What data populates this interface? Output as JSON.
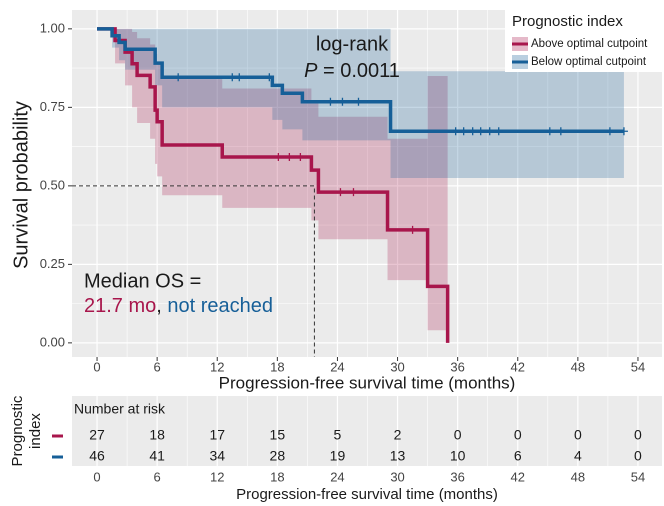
{
  "chart_data": {
    "type": "survival",
    "ylabel": "Survival probability",
    "xlabel": "Progression-free survival time (months)",
    "xlim": [
      -2.5,
      56.4
    ],
    "ylim": [
      -0.045,
      1.06
    ],
    "xticks": [
      0,
      6,
      12,
      18,
      24,
      30,
      36,
      42,
      48,
      54
    ],
    "yticks": [
      {
        "value": 0,
        "label": "0.00"
      },
      {
        "value": 0.25,
        "label": "0.25"
      },
      {
        "value": 0.5,
        "label": "0.50"
      },
      {
        "value": 0.75,
        "label": "0.75"
      },
      {
        "value": 1,
        "label": "1.00"
      }
    ],
    "grid": true,
    "legend": {
      "title": "Prognostic index",
      "position": "top-right"
    },
    "series": [
      {
        "name": "Above optimal cutpoint",
        "color": "#a8164c",
        "x": [
          0,
          1.8,
          2.8,
          3.5,
          4.0,
          5.3,
          5.8,
          6.0,
          6.5,
          12.5,
          21.4,
          22.1,
          29.0,
          33.0,
          35.0
        ],
        "values": [
          1,
          0.963,
          0.926,
          0.889,
          0.852,
          0.815,
          0.741,
          0.704,
          0.63,
          0.592,
          0.55,
          0.48,
          0.36,
          0.18,
          0
        ],
        "lower": [
          1,
          0.89,
          0.82,
          0.75,
          0.7,
          0.65,
          0.57,
          0.53,
          0.47,
          0.43,
          0.39,
          0.33,
          0.2,
          0.04,
          0
        ],
        "upper": [
          1,
          1,
          1,
          0.99,
          0.97,
          0.95,
          0.92,
          0.89,
          0.84,
          0.81,
          0.77,
          0.72,
          0.65,
          0.85,
          0
        ],
        "censored": [
          18.1,
          19.2,
          20.3,
          24.3,
          25.6,
          31.5
        ]
      },
      {
        "name": "Below optimal cutpoint",
        "color": "#165f98",
        "x": [
          0,
          1.5,
          2.2,
          2.8,
          5.8,
          6.5,
          17.5,
          18.5,
          20.5,
          29.3,
          52.6
        ],
        "values": [
          1,
          0.978,
          0.957,
          0.935,
          0.891,
          0.846,
          0.82,
          0.795,
          0.768,
          0.674,
          0.674
        ],
        "lower": [
          1,
          0.94,
          0.9,
          0.87,
          0.82,
          0.75,
          0.71,
          0.68,
          0.645,
          0.525,
          0.525
        ],
        "upper": [
          1,
          1,
          1,
          1,
          1,
          1,
          1,
          1,
          1,
          0.865,
          0.865
        ],
        "censored": [
          8.1,
          13.5,
          14.2,
          17.2,
          23.3,
          24.5,
          26.1,
          35.8,
          36.6,
          37.5,
          38.3,
          39.2,
          40.1,
          45.2,
          46.3,
          51.2,
          52.6
        ]
      }
    ],
    "median_line": {
      "x": 21.7,
      "y": 0.5
    },
    "annotation": {
      "test": "log-rank",
      "p_symbol": "P",
      "p_value": " = 0.0011"
    },
    "median_text": {
      "label": "Median OS =",
      "values": [
        "21.7 mo",
        "not reached"
      ],
      "separator": ", "
    },
    "risk_table": {
      "title": "Number at risk",
      "ylabel": [
        "Prognostic",
        "index"
      ],
      "xlabel": "Progression-free survival time (months)",
      "xticks": [
        0,
        6,
        12,
        18,
        24,
        30,
        36,
        42,
        48,
        54
      ],
      "rows": [
        [
          27,
          18,
          17,
          15,
          5,
          2,
          0,
          0,
          0,
          0
        ],
        [
          46,
          41,
          34,
          28,
          19,
          13,
          10,
          6,
          4,
          0
        ]
      ]
    }
  }
}
